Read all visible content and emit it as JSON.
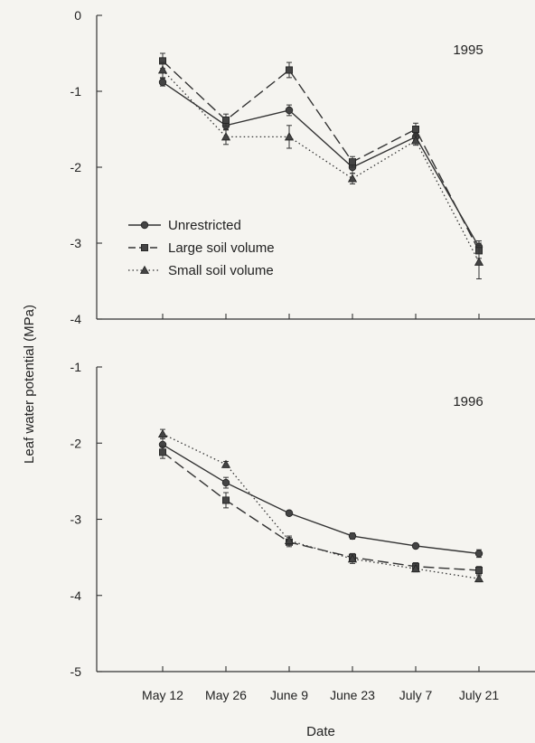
{
  "chart_data": {
    "type": "line",
    "ylabel": "Leaf water potential (MPa)",
    "xlabel": "Date",
    "categories": [
      "May 12",
      "May 26",
      "June 9",
      "June 23",
      "July 7",
      "July 21"
    ],
    "legend": {
      "placement": "center-left of top panel",
      "entries": [
        "Unrestricted",
        "Large soil volume",
        "Small soil volume"
      ]
    },
    "panels": [
      {
        "year_label": "1995",
        "ylim": [
          -4,
          0
        ],
        "yticks": [
          0,
          -1,
          -2,
          -3,
          -4
        ],
        "series": [
          {
            "name": "Unrestricted",
            "marker": "circle",
            "line": "solid",
            "values": [
              -0.88,
              -1.45,
              -1.25,
              -2.0,
              -1.6,
              -3.05
            ],
            "errors": [
              0.05,
              0.06,
              0.07,
              0.08,
              0.05,
              0.08
            ]
          },
          {
            "name": "Large soil volume",
            "marker": "square",
            "line": "dashed",
            "values": [
              -0.6,
              -1.38,
              -0.72,
              -1.93,
              -1.5,
              -3.1
            ],
            "errors": [
              0.1,
              0.08,
              0.1,
              0.07,
              0.08,
              0.1
            ]
          },
          {
            "name": "Small soil volume",
            "marker": "triangle",
            "line": "dotted",
            "values": [
              -0.72,
              -1.6,
              -1.6,
              -2.15,
              -1.65,
              -3.25
            ],
            "errors": [
              0.1,
              0.1,
              0.15,
              0.07,
              0.06,
              0.22
            ]
          }
        ]
      },
      {
        "year_label": "1996",
        "ylim": [
          -5,
          -1
        ],
        "yticks": [
          -1,
          -2,
          -3,
          -4,
          -5
        ],
        "series": [
          {
            "name": "Unrestricted",
            "marker": "circle",
            "line": "solid",
            "values": [
              -2.02,
              -2.52,
              -2.92,
              -3.22,
              -3.35,
              -3.45
            ],
            "errors": [
              0.08,
              0.07,
              0.03,
              0.04,
              0.03,
              0.05
            ]
          },
          {
            "name": "Large soil volume",
            "marker": "square",
            "line": "dashed",
            "values": [
              -2.12,
              -2.75,
              -3.3,
              -3.5,
              -3.62,
              -3.67
            ],
            "errors": [
              0.08,
              0.1,
              0.06,
              0.05,
              0.05,
              0.05
            ]
          },
          {
            "name": "Small soil volume",
            "marker": "triangle",
            "line": "dotted",
            "values": [
              -1.88,
              -2.28,
              -3.28,
              -3.52,
              -3.65,
              -3.78
            ],
            "errors": [
              0.06,
              0.04,
              0.06,
              0.06,
              0.04,
              0.04
            ]
          }
        ]
      }
    ]
  }
}
